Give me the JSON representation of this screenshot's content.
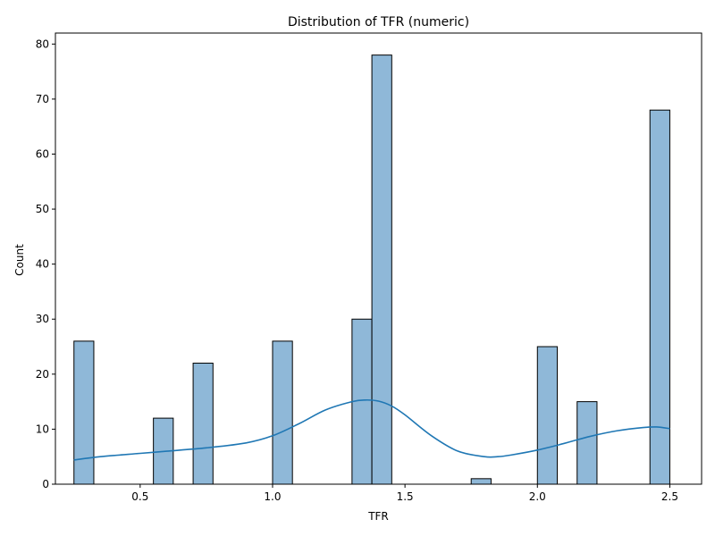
{
  "chart_data": {
    "type": "bar",
    "title": "Distribution of TFR (numeric)",
    "xlabel": "TFR",
    "ylabel": "Count",
    "xlim": [
      0.18,
      2.62
    ],
    "ylim": [
      0,
      82
    ],
    "xticks": [
      0.5,
      1.0,
      1.5,
      2.0,
      2.5
    ],
    "xtick_labels": [
      "0.5",
      "1.0",
      "1.5",
      "2.0",
      "2.5"
    ],
    "yticks": [
      0,
      10,
      20,
      30,
      40,
      50,
      60,
      70,
      80
    ],
    "ytick_labels": [
      "0",
      "10",
      "20",
      "30",
      "40",
      "50",
      "60",
      "70",
      "80"
    ],
    "bin_start": 0.25,
    "bin_width": 0.075,
    "bins": [
      {
        "x0": 0.25,
        "x1": 0.325,
        "count": 26
      },
      {
        "x0": 0.55,
        "x1": 0.625,
        "count": 12
      },
      {
        "x0": 0.7,
        "x1": 0.775,
        "count": 22
      },
      {
        "x0": 1.0,
        "x1": 1.075,
        "count": 26
      },
      {
        "x0": 1.3,
        "x1": 1.375,
        "count": 30
      },
      {
        "x0": 1.375,
        "x1": 1.45,
        "count": 78
      },
      {
        "x0": 1.75,
        "x1": 1.825,
        "count": 1
      },
      {
        "x0": 2.0,
        "x1": 2.075,
        "count": 25
      },
      {
        "x0": 2.15,
        "x1": 2.225,
        "count": 15
      },
      {
        "x0": 2.425,
        "x1": 2.5,
        "count": 68
      }
    ],
    "kde": {
      "x": [
        0.25,
        0.35,
        0.5,
        0.6,
        0.75,
        0.9,
        1.0,
        1.1,
        1.2,
        1.3,
        1.35,
        1.4,
        1.45,
        1.5,
        1.6,
        1.7,
        1.8,
        1.85,
        1.9,
        2.0,
        2.1,
        2.2,
        2.3,
        2.4,
        2.45,
        2.5
      ],
      "y": [
        4.4,
        5.0,
        5.6,
        6.0,
        6.6,
        7.5,
        8.8,
        11.0,
        13.5,
        15.0,
        15.3,
        15.1,
        14.2,
        12.6,
        8.8,
        6.0,
        5.0,
        5.0,
        5.3,
        6.2,
        7.4,
        8.7,
        9.7,
        10.3,
        10.4,
        10.1
      ]
    },
    "colors": {
      "bar_fill": "#8fb8d8",
      "bar_edge": "#000000",
      "kde_line": "#1f77b4"
    },
    "grid": false,
    "legend": "none"
  }
}
